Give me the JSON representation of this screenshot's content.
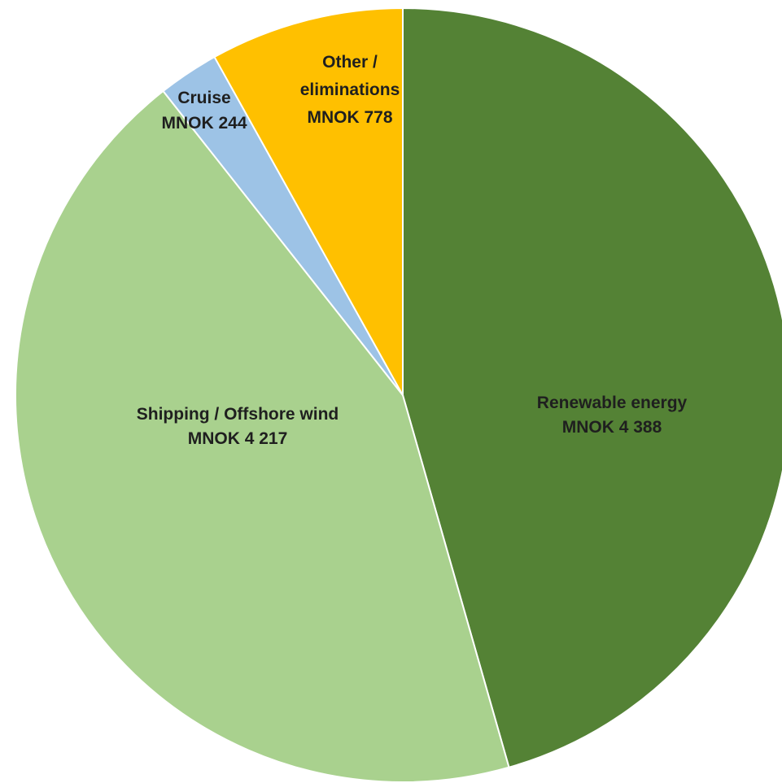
{
  "chart_data": {
    "type": "pie",
    "unit": "MNOK",
    "slices": [
      {
        "label_lines": [
          "Renewable energy",
          "MNOK 4 388"
        ],
        "name": "Renewable energy",
        "value": 4388,
        "color": "#548235"
      },
      {
        "label_lines": [
          "Shipping / Offshore wind",
          "MNOK 4 217"
        ],
        "name": "Shipping / Offshore wind",
        "value": 4217,
        "color": "#a9d18e"
      },
      {
        "label_lines": [
          "Cruise",
          "MNOK 244"
        ],
        "name": "Cruise",
        "value": 244,
        "color": "#9dc3e6"
      },
      {
        "label_lines": [
          "Other /",
          "eliminations",
          "MNOK 778"
        ],
        "name": "Other / eliminations",
        "value": 778,
        "color": "#ffc000"
      }
    ],
    "start_angle": "12 o'clock",
    "direction": "clockwise",
    "legend": "none"
  }
}
